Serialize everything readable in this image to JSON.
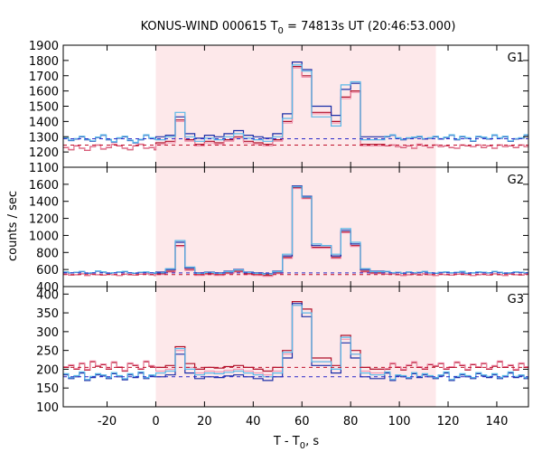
{
  "chart_data": {
    "type": "line",
    "title_pre": "KONUS-WIND 000615 T",
    "title_sub": "0",
    "title_post": " = 74813s UT (20:46:53.000)",
    "xlabel_pre": "T - T",
    "xlabel_sub": "0",
    "xlabel_post": ", s",
    "ylabel": "counts / sec",
    "xlim": [
      -38,
      153
    ],
    "xticks": [
      -20,
      0,
      20,
      40,
      60,
      80,
      100,
      120,
      140
    ],
    "shaded_region": [
      0,
      115
    ],
    "colors": {
      "blue": "#1a2ea8",
      "red": "#b0102a",
      "cyan": "#5ab8e8",
      "pink": "#f08aa8",
      "shade": "#fde8ea",
      "dash_blue": "#2828c8",
      "dash_red": "#c0102a"
    },
    "panels": [
      {
        "label": "G1",
        "ylim": [
          1100,
          1900
        ],
        "yticks": [
          1100,
          1200,
          1300,
          1400,
          1500,
          1600,
          1700,
          1800,
          1900
        ],
        "bg_blue": 1287,
        "bg_red": 1245,
        "series_blue": [
          1290,
          1275,
          1285,
          1300,
          1280,
          1270,
          1295,
          1310,
          1280,
          1265,
          1290,
          1300,
          1275,
          1260,
          1280,
          1310,
          1290,
          1285,
          1270,
          1300,
          1285,
          1295,
          1310,
          1290,
          1275,
          1300,
          1320,
          1310,
          1290,
          1300,
          1295,
          1280,
          1300,
          1280,
          1295,
          1310,
          1300,
          1280,
          1295,
          1285,
          1270,
          1290,
          1300,
          1295,
          1285,
          1290,
          1300,
          1280,
          1290,
          1310,
          1295,
          1280,
          1290,
          1285,
          1305,
          1295,
          1300,
          1280,
          1290,
          1285,
          1300,
          1310,
          1290,
          1280,
          1290,
          1295,
          1300,
          1285,
          1290,
          1300,
          1285,
          1295,
          1310,
          1280,
          1300,
          1290,
          1270,
          1300,
          1295,
          1285,
          1310,
          1290,
          1300,
          1270,
          1285,
          1290,
          1310
        ],
        "series_red": [
          1230,
          1215,
          1240,
          1225,
          1210,
          1235,
          1245,
          1220,
          1230,
          1250,
          1240,
          1225,
          1215,
          1240,
          1250,
          1225,
          1230,
          1215,
          1245,
          1235,
          1240,
          1230,
          1220,
          1250,
          1240,
          1225,
          1235,
          1245,
          1240,
          1235,
          1225,
          1250,
          1235,
          1240,
          1230,
          1245,
          1225,
          1240,
          1250,
          1235,
          1245,
          1240,
          1230,
          1220,
          1235,
          1245,
          1240,
          1230,
          1240,
          1235,
          1245,
          1230,
          1240,
          1225,
          1245,
          1240,
          1235,
          1245,
          1225,
          1230,
          1240,
          1245,
          1235,
          1230,
          1240,
          1225,
          1250,
          1240,
          1230,
          1245,
          1235,
          1240,
          1230,
          1225,
          1245,
          1240,
          1235,
          1245,
          1230,
          1240,
          1225,
          1245,
          1235,
          1240,
          1230,
          1245,
          1235
        ],
        "burst_blue": [
          1300,
          1310,
          1430,
          1320,
          1290,
          1310,
          1300,
          1320,
          1340,
          1310,
          1300,
          1290,
          1320,
          1450,
          1790,
          1740,
          1500,
          1500,
          1440,
          1610,
          1650,
          1300,
          1300
        ],
        "burst_red": [
          1260,
          1270,
          1410,
          1280,
          1250,
          1270,
          1260,
          1280,
          1300,
          1270,
          1260,
          1250,
          1280,
          1400,
          1760,
          1700,
          1460,
          1460,
          1400,
          1560,
          1600,
          1250,
          1250
        ],
        "burst_cyan": [
          1280,
          1300,
          1460,
          1300,
          1270,
          1290,
          1280,
          1300,
          1320,
          1290,
          1280,
          1270,
          1300,
          1420,
          1770,
          1730,
          1430,
          1430,
          1370,
          1640,
          1660,
          1280,
          1280
        ]
      },
      {
        "label": "G2",
        "ylim": [
          400,
          1800
        ],
        "yticks": [
          400,
          600,
          800,
          1000,
          1200,
          1400,
          1600
        ],
        "bg_blue": 560,
        "bg_red": 540,
        "series_blue": [
          570,
          560,
          565,
          575,
          555,
          560,
          580,
          570,
          555,
          560,
          570,
          575,
          560,
          555,
          565,
          570,
          560,
          555,
          575,
          565,
          560,
          570,
          555,
          560,
          575,
          565,
          570,
          560,
          555,
          565,
          570,
          560,
          575,
          560,
          565,
          570,
          555,
          560,
          570,
          565,
          560,
          575,
          565,
          555,
          560,
          570,
          565,
          560,
          575,
          555,
          560,
          570,
          565,
          575,
          560,
          565,
          555,
          570,
          560,
          565,
          575,
          560,
          565,
          555,
          570,
          560,
          565,
          575,
          560,
          555,
          565,
          570,
          560,
          565,
          575,
          555,
          560,
          570,
          565,
          560,
          575,
          565,
          555,
          560,
          570,
          565,
          560
        ],
        "series_red": [
          545,
          535,
          540,
          550,
          530,
          545,
          540,
          535,
          550,
          540,
          530,
          545,
          540,
          535,
          545,
          550,
          540,
          530,
          540,
          545,
          535,
          550,
          540,
          530,
          545,
          540,
          535,
          545,
          550,
          540,
          530,
          540,
          545,
          535,
          550,
          540,
          530,
          545,
          540,
          535,
          545,
          550,
          540,
          530,
          545,
          540,
          535,
          550,
          540,
          545,
          530,
          540,
          545,
          535,
          550,
          540,
          530,
          545,
          540,
          535,
          545,
          550,
          540,
          530,
          540,
          545,
          535,
          550,
          540,
          530,
          545,
          540,
          535,
          545,
          550,
          540,
          530,
          540,
          545,
          535,
          550,
          540,
          530,
          545,
          540,
          535,
          545
        ],
        "burst_blue": [
          570,
          600,
          920,
          620,
          560,
          570,
          560,
          580,
          600,
          570,
          560,
          550,
          580,
          760,
          1580,
          1460,
          880,
          880,
          760,
          1060,
          900,
          600,
          580
        ],
        "burst_red": [
          550,
          580,
          880,
          600,
          540,
          550,
          540,
          560,
          580,
          550,
          540,
          530,
          560,
          740,
          1560,
          1440,
          860,
          860,
          740,
          1040,
          880,
          580,
          560
        ],
        "burst_cyan": [
          560,
          610,
          940,
          630,
          555,
          565,
          555,
          575,
          595,
          565,
          555,
          545,
          575,
          780,
          1570,
          1450,
          900,
          880,
          780,
          1080,
          920,
          610,
          575
        ]
      },
      {
        "label": "G3",
        "ylim": [
          100,
          420
        ],
        "yticks": [
          100,
          150,
          200,
          250,
          300,
          350,
          400
        ],
        "bg_blue": 180,
        "bg_red": 205,
        "series_blue": [
          185,
          175,
          180,
          190,
          170,
          178,
          185,
          182,
          175,
          188,
          180,
          172,
          185,
          178,
          190,
          175,
          182,
          180,
          170,
          185,
          178,
          188,
          175,
          180,
          185,
          160,
          178,
          182,
          175,
          188,
          180,
          170,
          185,
          178,
          190,
          175,
          182,
          180,
          175,
          185,
          178,
          170,
          188,
          180,
          175,
          185,
          182,
          178,
          190,
          175,
          180,
          185,
          170,
          178,
          188,
          182,
          175,
          180,
          185,
          178,
          190,
          170,
          182,
          180,
          175,
          188,
          178,
          185,
          180,
          175,
          182,
          190,
          170,
          178,
          185,
          180,
          175,
          188,
          182,
          178,
          185,
          175,
          180,
          190,
          178,
          182,
          175
        ],
        "series_red": [
          205,
          210,
          200,
          215,
          198,
          220,
          208,
          212,
          200,
          218,
          205,
          195,
          215,
          210,
          200,
          220,
          208,
          205,
          212,
          198,
          215,
          205,
          200,
          218,
          210,
          205,
          215,
          200,
          208,
          220,
          205,
          198,
          212,
          210,
          200,
          218,
          205,
          215,
          208,
          200,
          212,
          205,
          220,
          198,
          210,
          215,
          205,
          200,
          218,
          208,
          212,
          200,
          205,
          215,
          210,
          198,
          220,
          205,
          208,
          212,
          200,
          215,
          205,
          198,
          210,
          218,
          205,
          200,
          212,
          208,
          215,
          200,
          205,
          218,
          210,
          198,
          212,
          205,
          215,
          200,
          208,
          220,
          205,
          210,
          198,
          215,
          205
        ],
        "burst_blue": [
          180,
          185,
          240,
          190,
          175,
          180,
          178,
          182,
          185,
          180,
          175,
          170,
          180,
          230,
          375,
          340,
          210,
          210,
          190,
          270,
          230,
          180,
          175
        ],
        "burst_red": [
          205,
          210,
          260,
          215,
          200,
          205,
          203,
          207,
          210,
          205,
          200,
          195,
          205,
          250,
          380,
          360,
          230,
          230,
          210,
          290,
          250,
          205,
          200
        ],
        "burst_cyan": [
          190,
          195,
          255,
          200,
          185,
          190,
          188,
          192,
          195,
          190,
          185,
          180,
          190,
          245,
          370,
          350,
          220,
          220,
          200,
          285,
          240,
          190,
          185
        ]
      }
    ]
  }
}
